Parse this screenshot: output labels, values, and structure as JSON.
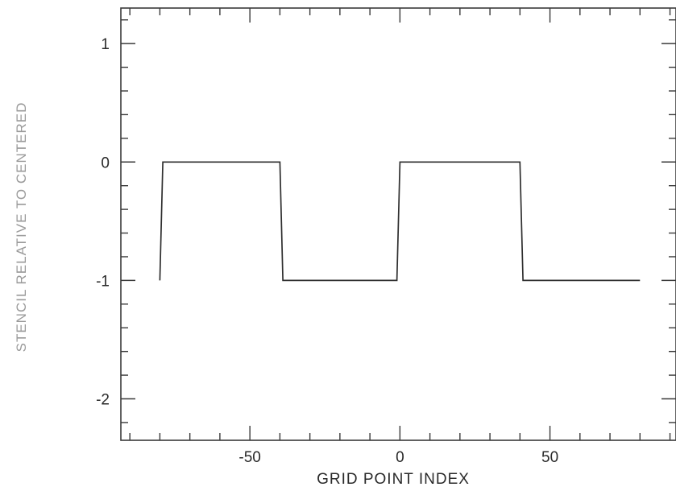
{
  "chart_data": {
    "type": "line",
    "xlabel": "GRID POINT INDEX",
    "ylabel": "STENCIL RELATIVE TO CENTERED",
    "xlim": [
      -93,
      92
    ],
    "ylim": [
      -2.35,
      1.3
    ],
    "x_ticks": [
      {
        "value": -50,
        "label": "-50"
      },
      {
        "value": 0,
        "label": "0"
      },
      {
        "value": 50,
        "label": "50"
      }
    ],
    "y_ticks": [
      {
        "value": 1,
        "label": "1"
      },
      {
        "value": 0,
        "label": "0"
      },
      {
        "value": -1,
        "label": "-1"
      },
      {
        "value": -2,
        "label": "-2"
      }
    ],
    "x_minor_step": 10,
    "y_minor_step": 0.2,
    "series": [
      {
        "x": [
          -80,
          -79,
          -40,
          -39,
          -1,
          0,
          40,
          41,
          80
        ],
        "y": [
          -1,
          0,
          0,
          -1,
          -1,
          0,
          0,
          -1,
          -1
        ]
      }
    ]
  }
}
